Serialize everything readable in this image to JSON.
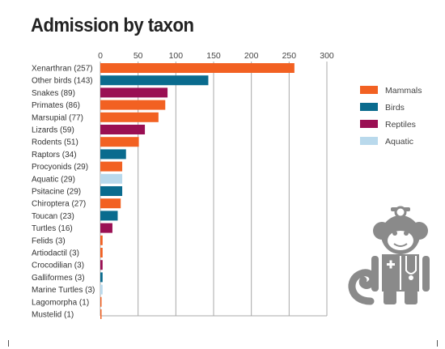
{
  "chart_data": {
    "type": "bar",
    "orientation": "horizontal",
    "title": "Admission by taxon",
    "xlim": [
      0,
      300
    ],
    "xticks": [
      0,
      50,
      100,
      150,
      200,
      250,
      300
    ],
    "grid": true,
    "legend_position": "right",
    "categories": [
      "Xenarthran (257)",
      "Other birds (143)",
      "Snakes (89)",
      "Primates (86)",
      "Marsupial (77)",
      "Lizards (59)",
      "Rodents (51)",
      "Raptors (34)",
      "Procyonids (29)",
      "Aquatic (29)",
      "Psitacine (29)",
      "Chiroptera (27)",
      "Toucan (23)",
      "Turtles (16)",
      "Felids (3)",
      "Artiodactil (3)",
      "Crocodilian (3)",
      "Galliformes (3)",
      "Marine Turtles (3)",
      "Lagomorpha (1)",
      "Mustelid (1)"
    ],
    "values": [
      257,
      143,
      89,
      86,
      77,
      59,
      51,
      34,
      29,
      29,
      29,
      27,
      23,
      16,
      3,
      3,
      3,
      3,
      3,
      1,
      1
    ],
    "groups": [
      "Mammals",
      "Birds",
      "Reptiles",
      "Mammals",
      "Mammals",
      "Reptiles",
      "Mammals",
      "Birds",
      "Mammals",
      "Aquatic",
      "Birds",
      "Mammals",
      "Birds",
      "Reptiles",
      "Mammals",
      "Mammals",
      "Reptiles",
      "Birds",
      "Aquatic",
      "Mammals",
      "Mammals"
    ],
    "legend": [
      {
        "name": "Mammals",
        "color": "#f26122"
      },
      {
        "name": "Birds",
        "color": "#0a6b8e"
      },
      {
        "name": "Reptiles",
        "color": "#9a0f53"
      },
      {
        "name": "Aquatic",
        "color": "#b9d9ec"
      }
    ]
  },
  "mascot": {
    "icon": "monkey-doctor-icon",
    "color": "#8a8a8a"
  }
}
